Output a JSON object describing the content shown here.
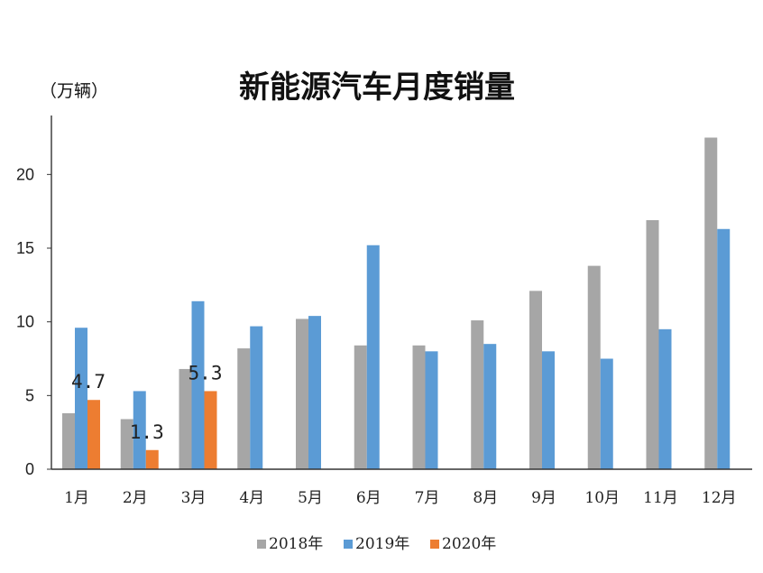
{
  "chart_data": {
    "type": "bar",
    "title": "新能源汽车月度销量",
    "unit_label": "（万辆）",
    "xlabel": "",
    "ylabel": "万辆",
    "ylim": [
      0,
      24
    ],
    "yticks": [
      0,
      5,
      10,
      15,
      20
    ],
    "categories": [
      "1月",
      "2月",
      "3月",
      "4月",
      "5月",
      "6月",
      "7月",
      "8月",
      "9月",
      "10月",
      "11月",
      "12月"
    ],
    "series": [
      {
        "name": "2018年",
        "color": "#a6a6a6",
        "values": [
          3.8,
          3.4,
          6.8,
          8.2,
          10.2,
          8.4,
          8.4,
          10.1,
          12.1,
          13.8,
          16.9,
          22.5
        ]
      },
      {
        "name": "2019年",
        "color": "#5b9bd5",
        "values": [
          9.6,
          5.3,
          11.4,
          9.7,
          10.4,
          15.2,
          8.0,
          8.5,
          8.0,
          7.5,
          9.5,
          16.3
        ]
      },
      {
        "name": "2020年",
        "color": "#ed7d31",
        "values": [
          4.7,
          1.3,
          5.3,
          null,
          null,
          null,
          null,
          null,
          null,
          null,
          null,
          null
        ]
      }
    ],
    "data_labels": [
      {
        "series": 2,
        "index": 0,
        "text": "4.7"
      },
      {
        "series": 2,
        "index": 1,
        "text": "1.3"
      },
      {
        "series": 2,
        "index": 2,
        "text": "5.3"
      }
    ],
    "legend_position": "bottom-center"
  }
}
